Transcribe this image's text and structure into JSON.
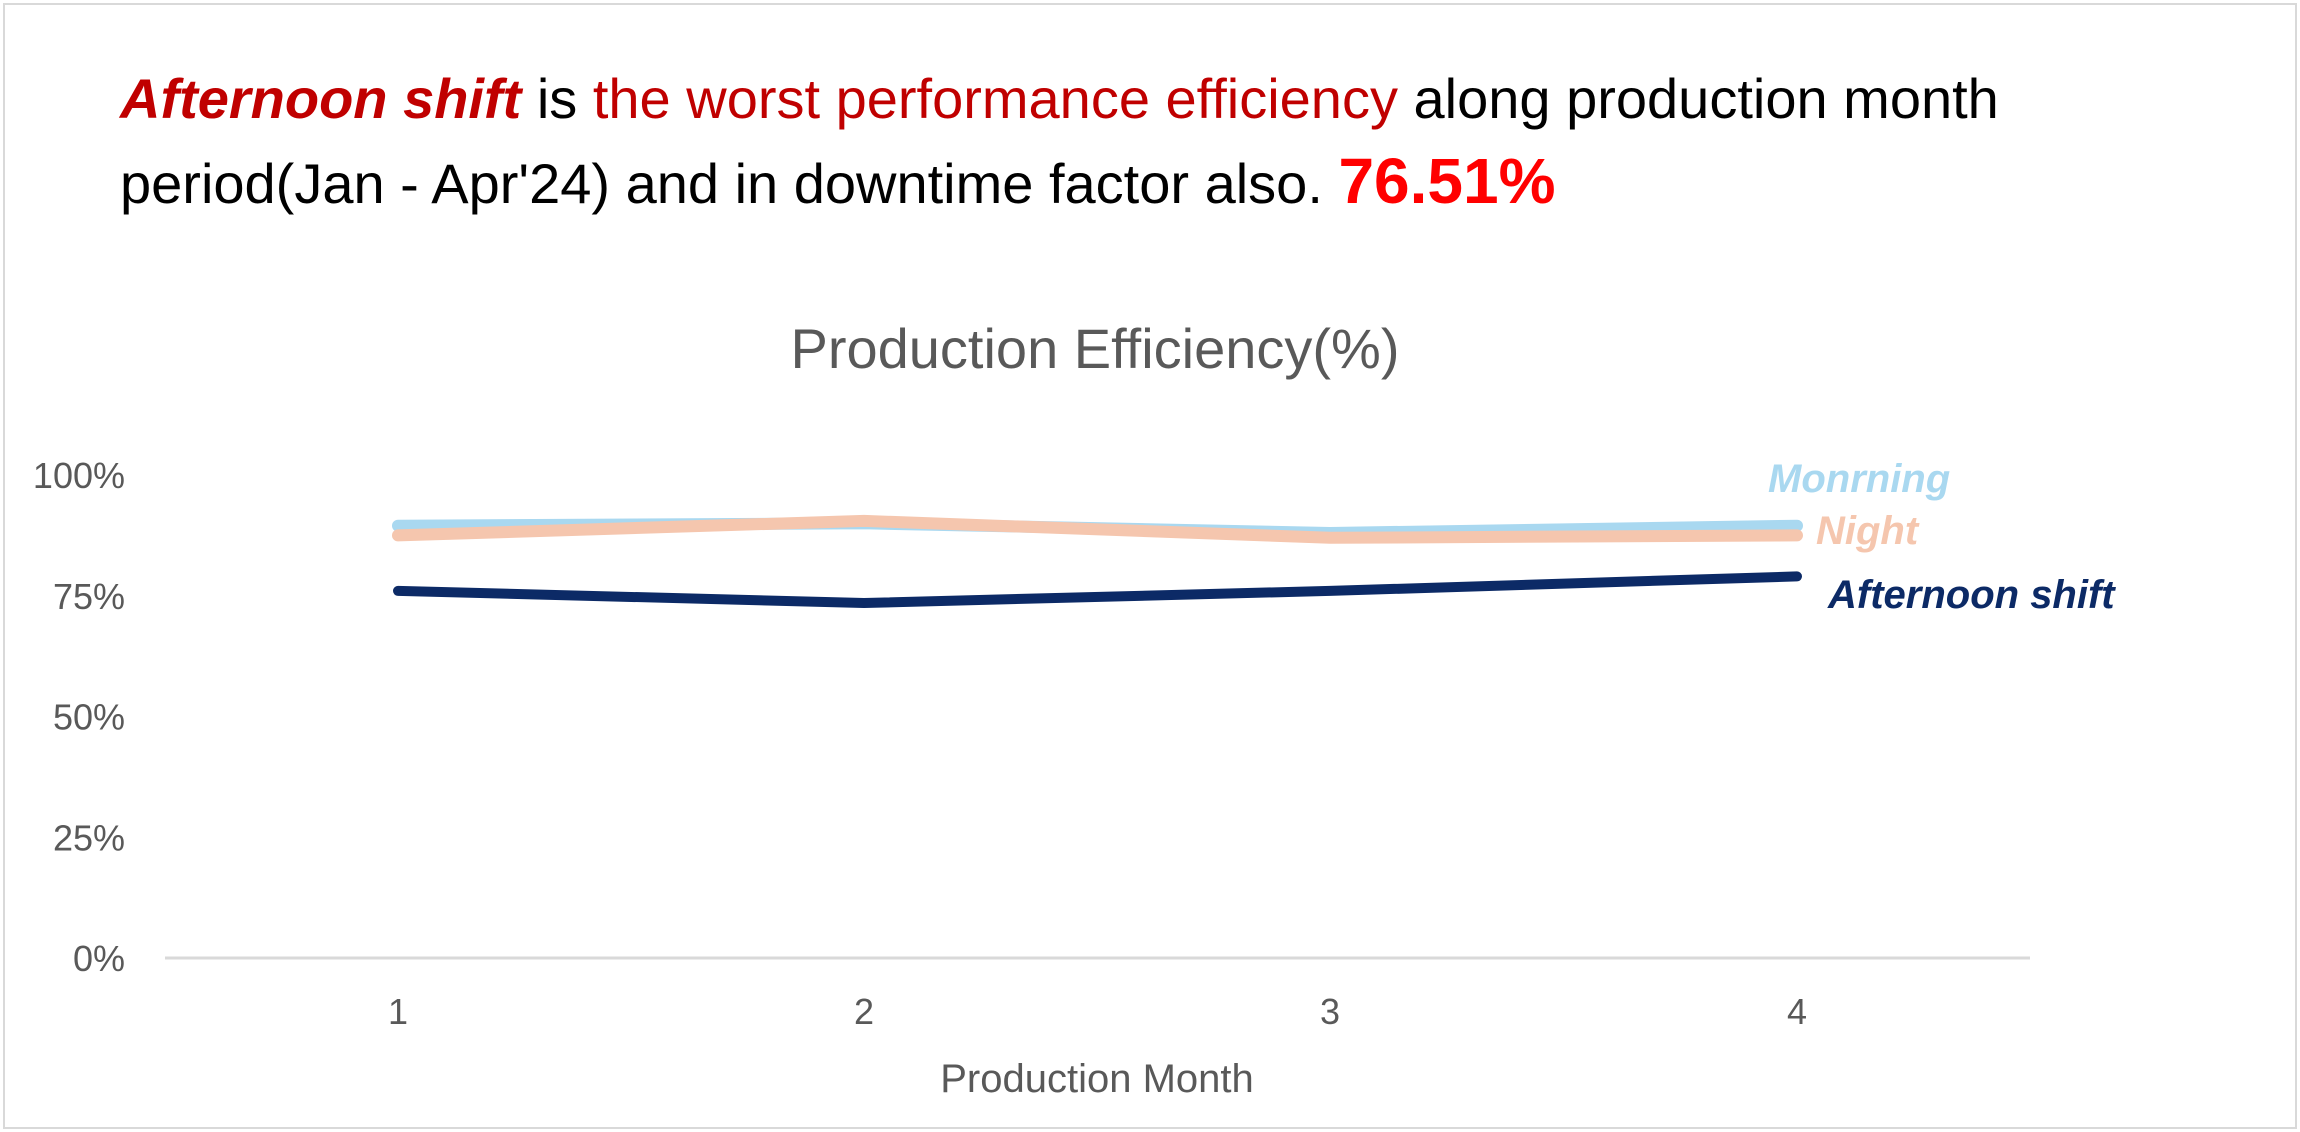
{
  "headline": {
    "part1": "Afternoon shift",
    "part2": " is ",
    "part3": "the worst performance efficiency",
    "part4": "  along production month period(Jan - Apr'24) and in downtime factor also. ",
    "part5": "76.51%"
  },
  "colors": {
    "morning": "#a9d8f0",
    "night": "#f5c6ae",
    "afternoon": "#0c2a66",
    "axis_text": "#595959",
    "grid": "#d9d9d9",
    "emphasis": "#c00000",
    "highlight": "#ff0000"
  },
  "chart_data": {
    "type": "line",
    "title": "Production Efficiency(%)",
    "xlabel": "Production Month",
    "ylabel": "",
    "categories": [
      "1",
      "2",
      "3",
      "4"
    ],
    "ylim": [
      0,
      100
    ],
    "y_ticks": [
      "0%",
      "25%",
      "50%",
      "75%",
      "100%"
    ],
    "y_tick_values": [
      0,
      25,
      50,
      75,
      100
    ],
    "grid": false,
    "legend": "direct labels at right end of lines",
    "series": [
      {
        "name": "Monrning",
        "values": [
          89.5,
          90.0,
          88.0,
          89.5
        ],
        "color": "#a9d8f0"
      },
      {
        "name": "Night",
        "values": [
          87.5,
          90.5,
          87.0,
          87.5
        ],
        "color": "#f5c6ae"
      },
      {
        "name": "Afternoon shift",
        "values": [
          76.0,
          73.5,
          76.0,
          79.0
        ],
        "color": "#0c2a66"
      }
    ]
  }
}
